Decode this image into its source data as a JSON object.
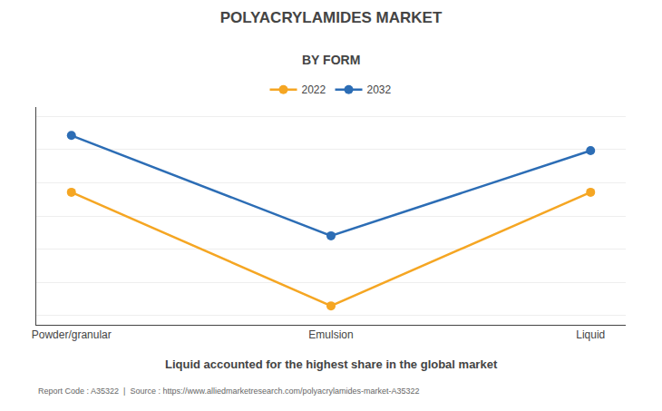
{
  "chart_data": {
    "type": "line",
    "title": "POLYACRYLAMIDES MARKET",
    "subtitle": "BY FORM",
    "categories": [
      "Powder/granular",
      "Emulsion",
      "Liquid"
    ],
    "series": [
      {
        "name": "2022",
        "color": "#F5A623",
        "values": [
          0.65,
          0.05,
          0.65
        ]
      },
      {
        "name": "2032",
        "color": "#2C6DB5",
        "values": [
          0.95,
          0.42,
          0.87
        ]
      }
    ],
    "ylim": [
      -0.05,
      1.1
    ],
    "yticks": [
      0,
      0.175,
      0.35,
      0.525,
      0.7,
      0.875,
      1.05
    ],
    "grid": true,
    "tick_labels": "x",
    "marker": "circle",
    "annotations": [
      "Liquid accounted for the highest share in the global market",
      "Report Code : A35322  |  Source : https://www.alliedmarketresearch.com/polyacrylamides-market-A35322"
    ]
  }
}
